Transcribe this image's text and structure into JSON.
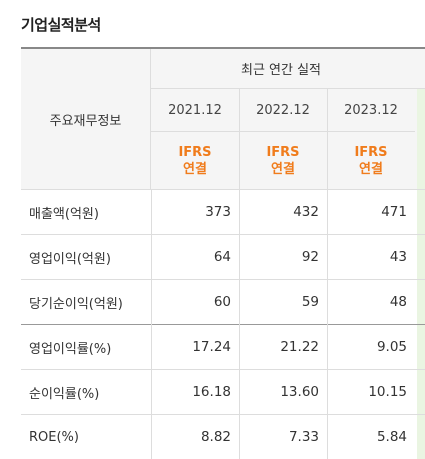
{
  "title": "기업실적분석",
  "header": {
    "label": "주요재무정보",
    "group": "최근 연간 실적",
    "years": [
      "2021.12",
      "2022.12",
      "2023.12"
    ],
    "ifrs_top": "IFRS",
    "ifrs_bottom": "연결"
  },
  "rows": [
    {
      "label": "매출액(억원)",
      "values": [
        "373",
        "432",
        "471"
      ]
    },
    {
      "label": "영업이익(억원)",
      "values": [
        "64",
        "92",
        "43"
      ]
    },
    {
      "label": "당기순이익(억원)",
      "values": [
        "60",
        "59",
        "48"
      ]
    },
    {
      "label": "영업이익률(%)",
      "values": [
        "17.24",
        "21.22",
        "9.05"
      ]
    },
    {
      "label": "순이익률(%)",
      "values": [
        "16.18",
        "13.60",
        "10.15"
      ]
    },
    {
      "label": "ROE(%)",
      "values": [
        "8.82",
        "7.33",
        "5.84"
      ]
    }
  ],
  "colors": {
    "ifrs": "#f07c1c",
    "header_bg": "#f5f5f5"
  }
}
